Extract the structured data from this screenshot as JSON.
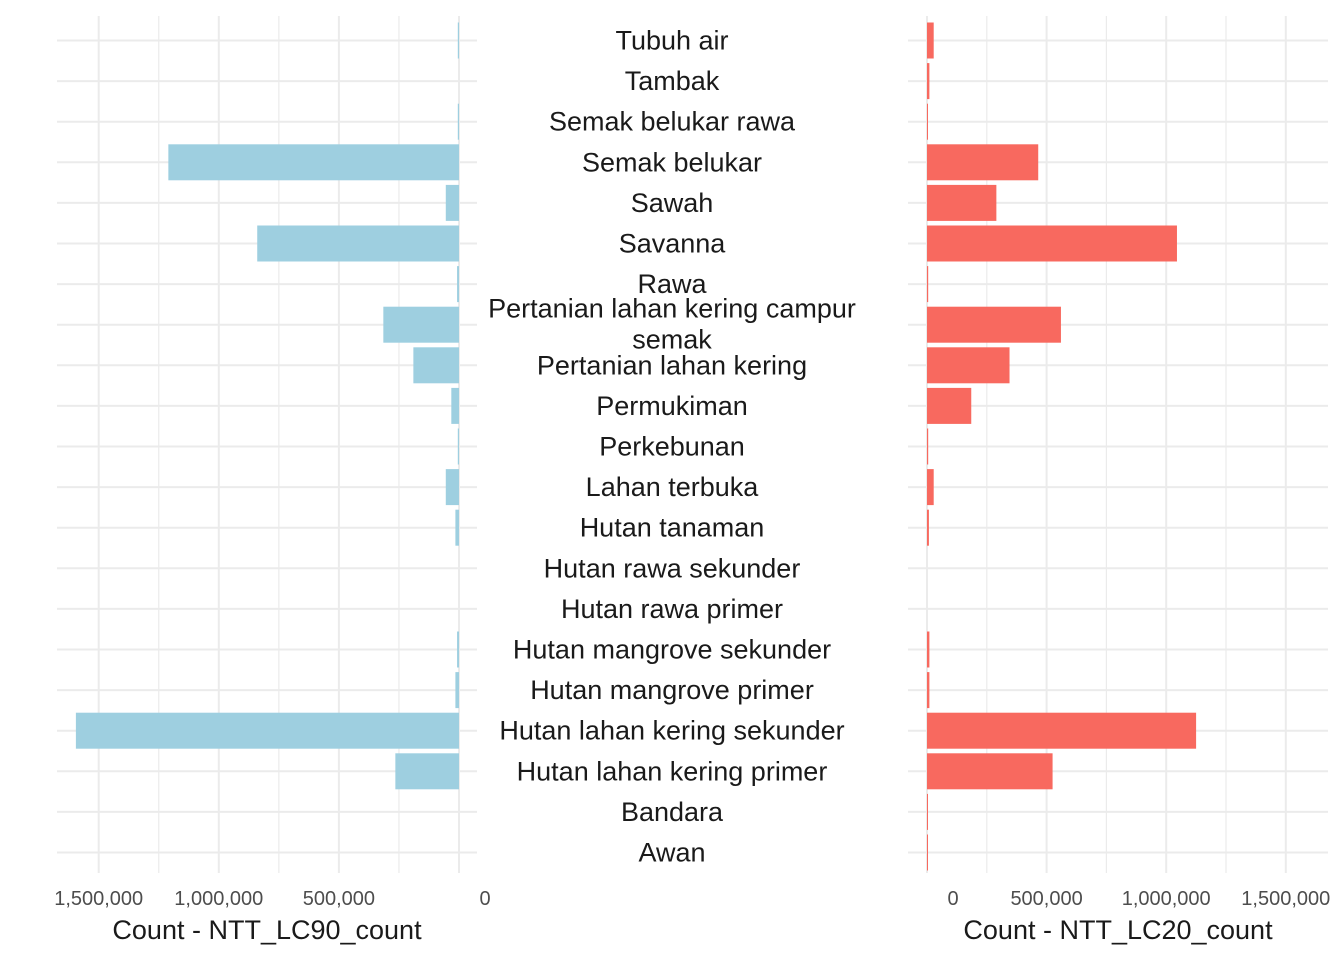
{
  "chart_data": [
    {
      "type": "bar",
      "orientation": "horizontal",
      "direction": "reversed",
      "xlabel": "Count - NTT_LC90_count",
      "xlim": [
        0,
        1675000
      ],
      "ticks": [
        0,
        500000,
        1000000,
        1500000
      ],
      "tick_labels": [
        "0",
        "500,000",
        "1,000,000",
        "1,500,000"
      ],
      "grid": true,
      "bar_color": "#9ECFE0",
      "categories": [
        "Awan",
        "Bandara",
        "Hutan lahan kering primer",
        "Hutan lahan kering sekunder",
        "Hutan mangrove primer",
        "Hutan mangrove sekunder",
        "Hutan rawa primer",
        "Hutan rawa sekunder",
        "Hutan tanaman",
        "Lahan terbuka",
        "Perkebunan",
        "Permukiman",
        "Pertanian lahan kering",
        "Pertanian lahan kering campur semak",
        "Rawa",
        "Savanna",
        "Sawah",
        "Semak belukar",
        "Semak belukar rawa",
        "Tambak",
        "Tubuh air"
      ],
      "values": [
        0,
        0,
        265000,
        1595000,
        15000,
        8000,
        0,
        0,
        15000,
        55000,
        5000,
        32000,
        190000,
        315000,
        8000,
        840000,
        55000,
        1210000,
        5000,
        0,
        5000
      ]
    },
    {
      "type": "bar",
      "orientation": "horizontal",
      "xlabel": "Count - NTT_LC20_count",
      "xlim": [
        0,
        1675000
      ],
      "ticks": [
        0,
        500000,
        1000000,
        1500000
      ],
      "tick_labels": [
        "0",
        "500,000",
        "1,000,000",
        "1,500,000"
      ],
      "grid": true,
      "bar_color": "#F8695F",
      "categories": [
        "Awan",
        "Bandara",
        "Hutan lahan kering primer",
        "Hutan lahan kering sekunder",
        "Hutan mangrove primer",
        "Hutan mangrove sekunder",
        "Hutan rawa primer",
        "Hutan rawa sekunder",
        "Hutan tanaman",
        "Lahan terbuka",
        "Perkebunan",
        "Permukiman",
        "Pertanian lahan kering",
        "Pertanian lahan kering campur semak",
        "Rawa",
        "Savanna",
        "Sawah",
        "Semak belukar",
        "Semak belukar rawa",
        "Tambak",
        "Tubuh air"
      ],
      "values": [
        2000,
        2000,
        525000,
        1125000,
        10000,
        10000,
        0,
        0,
        8000,
        28000,
        5000,
        185000,
        345000,
        560000,
        5000,
        1045000,
        290000,
        465000,
        3000,
        10000,
        28000
      ]
    }
  ],
  "category_labels": [
    [
      "Awan"
    ],
    [
      "Bandara"
    ],
    [
      "Hutan lahan kering primer"
    ],
    [
      "Hutan lahan kering sekunder"
    ],
    [
      "Hutan mangrove primer"
    ],
    [
      "Hutan mangrove sekunder"
    ],
    [
      "Hutan rawa primer"
    ],
    [
      "Hutan rawa sekunder"
    ],
    [
      "Hutan tanaman"
    ],
    [
      "Lahan terbuka"
    ],
    [
      "Perkebunan"
    ],
    [
      "Permukiman"
    ],
    [
      "Pertanian lahan kering"
    ],
    [
      "Pertanian lahan kering campur",
      "semak"
    ],
    [
      "Rawa"
    ],
    [
      "Savanna"
    ],
    [
      "Sawah"
    ],
    [
      "Semak belukar"
    ],
    [
      "Semak belukar rawa"
    ],
    [
      "Tambak"
    ],
    [
      "Tubuh air"
    ]
  ]
}
